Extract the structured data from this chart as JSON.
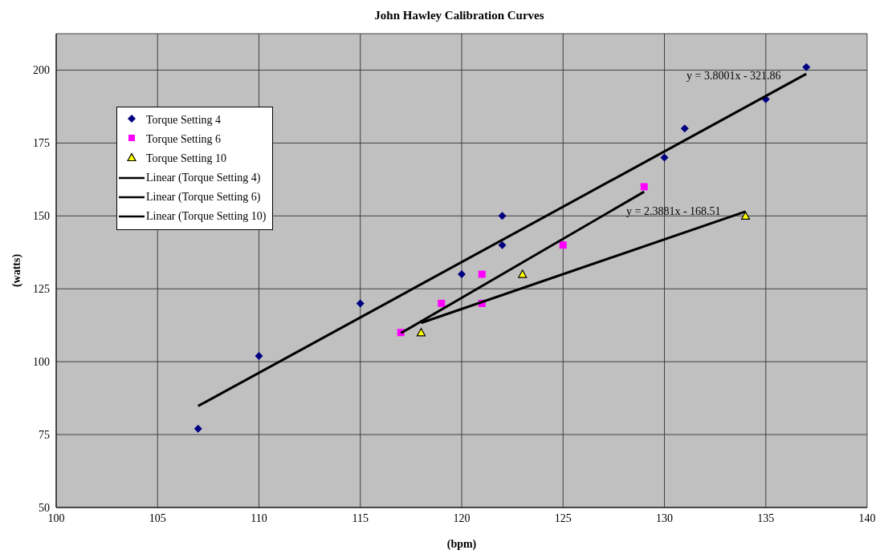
{
  "chart_data": {
    "type": "scatter",
    "title": "John Hawley Calibration Curves",
    "xlabel": "(bpm)",
    "ylabel": "(watts)",
    "xlim": [
      100,
      140
    ],
    "xticks": [
      100,
      105,
      110,
      115,
      120,
      125,
      130,
      135,
      140
    ],
    "ylim": [
      50,
      212.5
    ],
    "yticks": [
      50,
      75,
      100,
      125,
      150,
      175,
      200
    ],
    "grid": true,
    "legend": "left",
    "series": [
      {
        "name": "Torque Setting 4",
        "type": "scatter",
        "marker": "diamond",
        "color": "#000080",
        "x": [
          107,
          110,
          115,
          120,
          122,
          122,
          130,
          131,
          135,
          137
        ],
        "values": [
          77,
          102,
          120,
          130,
          150,
          140,
          170,
          180,
          190,
          201
        ]
      },
      {
        "name": "Torque Setting 6",
        "type": "scatter",
        "marker": "square",
        "color": "#ff00ff",
        "x": [
          117,
          119,
          121,
          121,
          125,
          129
        ],
        "values": [
          110,
          120,
          130,
          120,
          140,
          160
        ]
      },
      {
        "name": "Torque Setting 10",
        "type": "scatter",
        "marker": "triangle",
        "color": "#ffff00",
        "x": [
          118,
          123,
          134
        ],
        "values": [
          110,
          130,
          150
        ]
      },
      {
        "name": "Linear (Torque Setting 4)",
        "type": "line",
        "marker": "none",
        "color": "#000000",
        "x": [
          107,
          137
        ],
        "values": [
          84.8,
          198.7
        ]
      },
      {
        "name": "Linear (Torque Setting 6)",
        "type": "line",
        "marker": "none",
        "color": "#000000",
        "x": [
          117,
          129
        ],
        "values": [
          109.8,
          158.3
        ]
      },
      {
        "name": "Linear (Torque Setting 10)",
        "type": "line",
        "marker": "none",
        "color": "#000000",
        "x": [
          118,
          134
        ],
        "values": [
          113.3,
          151.5
        ]
      }
    ],
    "annotations": [
      "y = 3.8001x - 321.86",
      "y = 2.3881x - 168.51"
    ]
  }
}
